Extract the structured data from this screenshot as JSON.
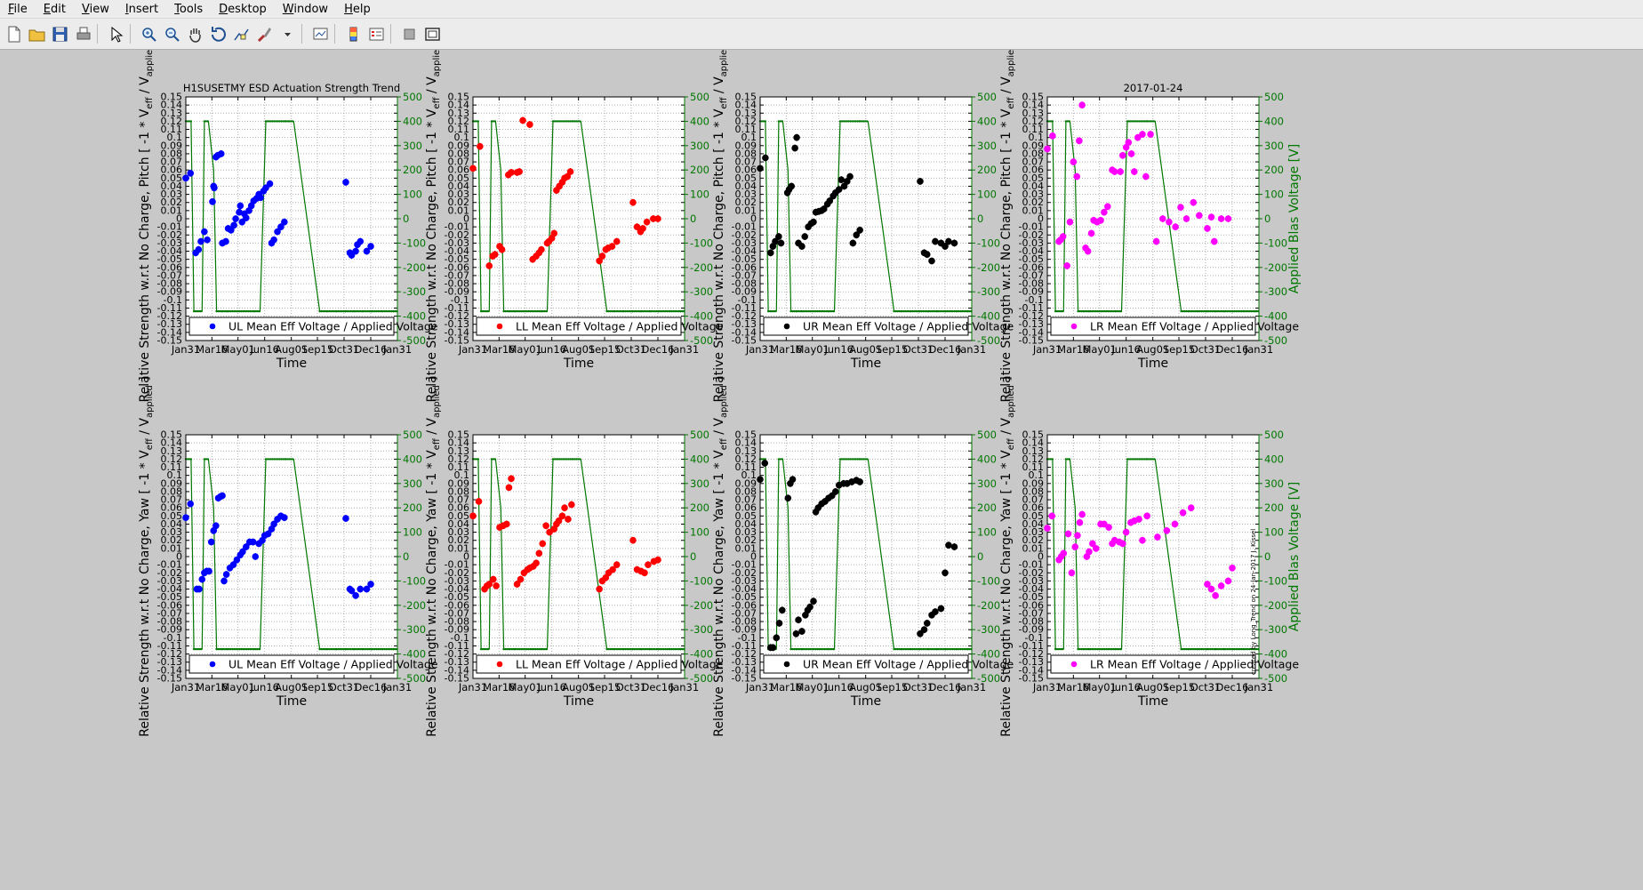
{
  "menu": [
    {
      "label": "File",
      "mnemonic": "F",
      "rest": "ile"
    },
    {
      "label": "Edit",
      "mnemonic": "E",
      "rest": "dit"
    },
    {
      "label": "View",
      "mnemonic": "V",
      "rest": "iew"
    },
    {
      "label": "Insert",
      "mnemonic": "I",
      "rest": "nsert"
    },
    {
      "label": "Tools",
      "mnemonic": "T",
      "rest": "ools"
    },
    {
      "label": "Desktop",
      "mnemonic": "D",
      "rest": "esktop"
    },
    {
      "label": "Window",
      "mnemonic": "W",
      "rest": "indow"
    },
    {
      "label": "Help",
      "mnemonic": "H",
      "rest": "elp"
    }
  ],
  "toolbar": [
    {
      "icon": "new-file-icon"
    },
    {
      "icon": "open-folder-icon"
    },
    {
      "icon": "save-icon"
    },
    {
      "icon": "print-icon"
    },
    {
      "sep": true
    },
    {
      "icon": "pointer-icon"
    },
    {
      "sep": true
    },
    {
      "icon": "zoom-in-icon"
    },
    {
      "icon": "zoom-out-icon"
    },
    {
      "icon": "pan-hand-icon"
    },
    {
      "icon": "rotate-3d-icon"
    },
    {
      "icon": "data-cursor-icon"
    },
    {
      "icon": "brush-icon"
    },
    {
      "icon": "dropdown-arrow-icon"
    },
    {
      "sep": true
    },
    {
      "icon": "link-plot-icon"
    },
    {
      "sep": true
    },
    {
      "icon": "colorbar-icon"
    },
    {
      "icon": "legend-icon"
    },
    {
      "sep": true
    },
    {
      "icon": "hide-tools-icon"
    },
    {
      "icon": "dock-figure-icon"
    }
  ],
  "figure": {
    "colors": {
      "UL": "#0000ff",
      "LL": "#ff0000",
      "UR": "#000000",
      "LR": "#ff00ff",
      "bias": "#007700"
    },
    "titles": {
      "main": "H1SUSETMY ESD Actuation Strength Trend",
      "date": "2017-01-24"
    },
    "axis_labels": {
      "time": "Time",
      "bias": "Applied Blas Voltage [V]",
      "left_ylabel_pitch": "Relative Strength w.r.t No Charge, Pitch [ -1 * V",
      "left_ylabel_yaw": "Relative Strength w.r.t No Charge, Yaw [ -1 * V",
      "ylabel_sub_eff": "eff",
      "ylabel_slash": " / V",
      "ylabel_sub_applied": "applied",
      "ylabel_close": " ]"
    },
    "legends": {
      "UL": "UL Mean Eff Voltage / Applied Voltage",
      "LL": "LL Mean Eff Voltage / Applied Voltage",
      "UR": "UR Mean Eff Voltage / Applied Voltage",
      "LR": "LR Mean Eff Voltage / Applied Voltage"
    },
    "watermark": "created by Long_Trend on 24-Jan-2017 J. Kissel"
  },
  "chart_data": {
    "type": "scatter",
    "x_tick_labels": [
      "Jan31",
      "Mar16",
      "May01",
      "Jun16",
      "Aug01",
      "Sep15",
      "Oct31",
      "Dec16",
      "Jan31"
    ],
    "x_tick_days": [
      0,
      45,
      90,
      136,
      182,
      227,
      273,
      319,
      365
    ],
    "xlim_days": [
      0,
      365
    ],
    "ylim": [
      -0.15,
      0.15
    ],
    "y_tick_step": 0.01,
    "y2lim": [
      -500,
      500
    ],
    "y2_ticks": [
      -500,
      -400,
      -300,
      -200,
      -100,
      0,
      100,
      200,
      300,
      400,
      500
    ],
    "grid": true,
    "legend_location": "bottom",
    "bias_voltage_trace": {
      "x": [
        0,
        9,
        14,
        28,
        32,
        39,
        48,
        53,
        63,
        72,
        118,
        128,
        138,
        172,
        186,
        231,
        244,
        260,
        275,
        290,
        305,
        320,
        340,
        358,
        365
      ],
      "y": [
        400,
        400,
        -380,
        -380,
        400,
        400,
        200,
        -380,
        -380,
        -380,
        -380,
        -380,
        400,
        400,
        400,
        -380,
        -380,
        -380,
        -380,
        -380,
        -380,
        -380,
        -380,
        -380,
        -380
      ],
      "markers_every": true
    },
    "panels": [
      {
        "row": "pitch",
        "quadrant": "UL",
        "x": [
          0,
          8,
          17,
          22,
          26,
          32,
          37,
          46,
          48,
          49,
          52,
          55,
          61,
          63,
          69,
          73,
          78,
          83,
          86,
          92,
          94,
          97,
          101,
          104,
          109,
          113,
          117,
          122,
          126,
          129,
          134,
          138,
          145,
          148,
          152,
          158,
          164,
          170,
          276,
          283,
          286,
          293,
          296,
          301,
          312,
          319
        ],
        "y": [
          0.05,
          0.056,
          -0.042,
          -0.038,
          -0.028,
          -0.016,
          -0.026,
          0.021,
          0.04,
          0.038,
          0.076,
          0.078,
          0.08,
          -0.03,
          -0.028,
          -0.012,
          -0.014,
          -0.008,
          0.0,
          0.008,
          0.016,
          -0.004,
          0.006,
          0.001,
          0.01,
          0.016,
          0.022,
          0.025,
          0.03,
          0.026,
          0.034,
          0.038,
          0.043,
          -0.03,
          -0.026,
          -0.016,
          -0.01,
          -0.004,
          0.045,
          -0.042,
          -0.045,
          -0.04,
          -0.032,
          -0.028,
          -0.04,
          -0.034
        ]
      },
      {
        "row": "pitch",
        "quadrant": "LL",
        "x": [
          0,
          12,
          28,
          34,
          38,
          46,
          50,
          61,
          66,
          76,
          80,
          86,
          98,
          103,
          109,
          114,
          118,
          128,
          131,
          136,
          140,
          144,
          149,
          154,
          158,
          163,
          168,
          218,
          223,
          229,
          233,
          240,
          248,
          276,
          283,
          289,
          293,
          300,
          311,
          319
        ],
        "y": [
          0.062,
          0.089,
          -0.058,
          -0.046,
          -0.044,
          -0.034,
          -0.038,
          0.054,
          0.057,
          0.057,
          0.058,
          0.121,
          0.116,
          -0.05,
          -0.046,
          -0.042,
          -0.038,
          -0.03,
          -0.028,
          -0.024,
          -0.018,
          0.035,
          0.04,
          0.045,
          0.05,
          0.052,
          0.058,
          -0.052,
          -0.046,
          -0.038,
          -0.036,
          -0.034,
          -0.028,
          0.02,
          -0.01,
          -0.016,
          -0.012,
          -0.004,
          0.0,
          0.0
        ]
      },
      {
        "row": "pitch",
        "quadrant": "UR",
        "x": [
          0,
          9,
          18,
          22,
          26,
          32,
          36,
          47,
          50,
          54,
          60,
          63,
          66,
          72,
          77,
          83,
          88,
          92,
          96,
          101,
          106,
          110,
          116,
          120,
          126,
          130,
          136,
          140,
          145,
          150,
          155,
          160,
          166,
          172,
          276,
          283,
          288,
          296,
          302,
          312,
          319,
          325,
          335
        ],
        "y": [
          0.062,
          0.075,
          -0.042,
          -0.034,
          -0.028,
          -0.022,
          -0.03,
          0.032,
          0.036,
          0.04,
          0.087,
          0.1,
          -0.03,
          -0.034,
          -0.022,
          -0.01,
          -0.006,
          -0.004,
          0.008,
          0.009,
          0.01,
          0.012,
          0.018,
          0.022,
          0.028,
          0.032,
          0.036,
          0.048,
          0.04,
          0.046,
          0.052,
          -0.03,
          -0.02,
          -0.014,
          0.046,
          -0.042,
          -0.044,
          -0.052,
          -0.028,
          -0.03,
          -0.034,
          -0.028,
          -0.03
        ]
      },
      {
        "row": "pitch",
        "quadrant": "LR",
        "x": [
          0,
          9,
          20,
          23,
          27,
          34,
          39,
          45,
          51,
          55,
          60,
          66,
          70,
          76,
          80,
          86,
          92,
          98,
          104,
          112,
          116,
          126,
          130,
          136,
          140,
          145,
          150,
          156,
          164,
          170,
          178,
          188,
          199,
          210,
          221,
          230,
          240,
          252,
          262,
          276,
          283,
          288,
          300,
          312
        ],
        "y": [
          0.086,
          0.102,
          -0.028,
          -0.026,
          -0.022,
          -0.058,
          -0.004,
          0.07,
          0.052,
          0.096,
          0.14,
          -0.036,
          -0.04,
          -0.018,
          -0.002,
          -0.004,
          -0.002,
          0.008,
          0.015,
          0.06,
          0.058,
          0.058,
          0.078,
          0.088,
          0.094,
          0.08,
          0.058,
          0.1,
          0.104,
          0.052,
          0.104,
          -0.028,
          0.0,
          -0.004,
          -0.01,
          0.014,
          0.0,
          0.02,
          0.004,
          -0.012,
          0.002,
          -0.028,
          0.0,
          0.0
        ]
      },
      {
        "row": "yaw",
        "quadrant": "UL",
        "x": [
          0,
          8,
          19,
          23,
          28,
          32,
          36,
          40,
          44,
          48,
          52,
          56,
          60,
          63,
          66,
          70,
          76,
          82,
          88,
          94,
          98,
          104,
          110,
          116,
          120,
          126,
          132,
          136,
          142,
          148,
          152,
          158,
          164,
          170,
          276,
          283,
          286,
          293,
          301,
          312,
          319
        ],
        "y": [
          0.048,
          0.065,
          -0.04,
          -0.04,
          -0.028,
          -0.02,
          -0.018,
          -0.018,
          0.018,
          0.032,
          0.038,
          0.072,
          0.074,
          0.075,
          -0.03,
          -0.022,
          -0.014,
          -0.01,
          -0.004,
          0.002,
          0.006,
          0.012,
          0.018,
          0.018,
          0.0,
          0.016,
          0.02,
          0.026,
          0.028,
          0.034,
          0.04,
          0.046,
          0.05,
          0.048,
          0.047,
          -0.04,
          -0.042,
          -0.048,
          -0.04,
          -0.04,
          -0.034
        ]
      },
      {
        "row": "yaw",
        "quadrant": "LL",
        "x": [
          0,
          10,
          20,
          24,
          28,
          35,
          40,
          46,
          52,
          58,
          62,
          66,
          76,
          82,
          88,
          94,
          98,
          104,
          109,
          114,
          120,
          126,
          132,
          140,
          144,
          148,
          154,
          158,
          164,
          170,
          218,
          223,
          229,
          234,
          241,
          248,
          276,
          283,
          290,
          296,
          302,
          312,
          319
        ],
        "y": [
          0.05,
          0.068,
          -0.04,
          -0.036,
          -0.034,
          -0.028,
          -0.036,
          0.036,
          0.038,
          0.04,
          0.085,
          0.096,
          -0.034,
          -0.028,
          -0.02,
          -0.016,
          -0.014,
          -0.012,
          -0.008,
          0.004,
          0.016,
          0.038,
          0.03,
          0.034,
          0.04,
          0.044,
          0.05,
          0.06,
          0.046,
          0.064,
          -0.04,
          -0.03,
          -0.026,
          -0.02,
          -0.016,
          -0.01,
          0.02,
          -0.016,
          -0.018,
          -0.02,
          -0.01,
          -0.006,
          -0.004
        ]
      },
      {
        "row": "yaw",
        "quadrant": "UR",
        "x": [
          0,
          8,
          18,
          22,
          28,
          33,
          38,
          48,
          52,
          56,
          62,
          66,
          72,
          78,
          82,
          86,
          92,
          96,
          100,
          106,
          112,
          118,
          124,
          130,
          136,
          144,
          150,
          158,
          166,
          172,
          276,
          283,
          288,
          296,
          302,
          312,
          319,
          325,
          335
        ],
        "y": [
          0.095,
          0.115,
          -0.112,
          -0.112,
          -0.1,
          -0.082,
          -0.066,
          0.072,
          0.09,
          0.095,
          -0.095,
          -0.078,
          -0.092,
          -0.072,
          -0.066,
          -0.062,
          -0.055,
          0.055,
          0.06,
          0.065,
          0.068,
          0.072,
          0.075,
          0.08,
          0.088,
          0.09,
          0.09,
          0.092,
          0.094,
          0.092,
          -0.095,
          -0.09,
          -0.082,
          -0.072,
          -0.068,
          -0.064,
          -0.02,
          0.014,
          0.012
        ]
      },
      {
        "row": "yaw",
        "quadrant": "LR",
        "x": [
          0,
          8,
          20,
          24,
          28,
          36,
          42,
          48,
          52,
          56,
          60,
          68,
          72,
          78,
          84,
          92,
          98,
          106,
          112,
          116,
          124,
          130,
          136,
          144,
          150,
          158,
          164,
          172,
          190,
          206,
          220,
          234,
          248,
          276,
          283,
          290,
          300,
          312,
          319
        ],
        "y": [
          0.035,
          0.05,
          -0.004,
          0.0,
          0.004,
          0.028,
          -0.02,
          0.012,
          0.026,
          0.042,
          0.052,
          0.0,
          0.006,
          0.016,
          0.01,
          0.04,
          0.04,
          0.036,
          0.016,
          0.02,
          0.018,
          0.016,
          0.03,
          0.042,
          0.044,
          0.046,
          0.02,
          0.05,
          0.024,
          0.032,
          0.04,
          0.054,
          0.06,
          -0.034,
          -0.04,
          -0.048,
          -0.036,
          -0.03,
          -0.014
        ]
      }
    ]
  }
}
